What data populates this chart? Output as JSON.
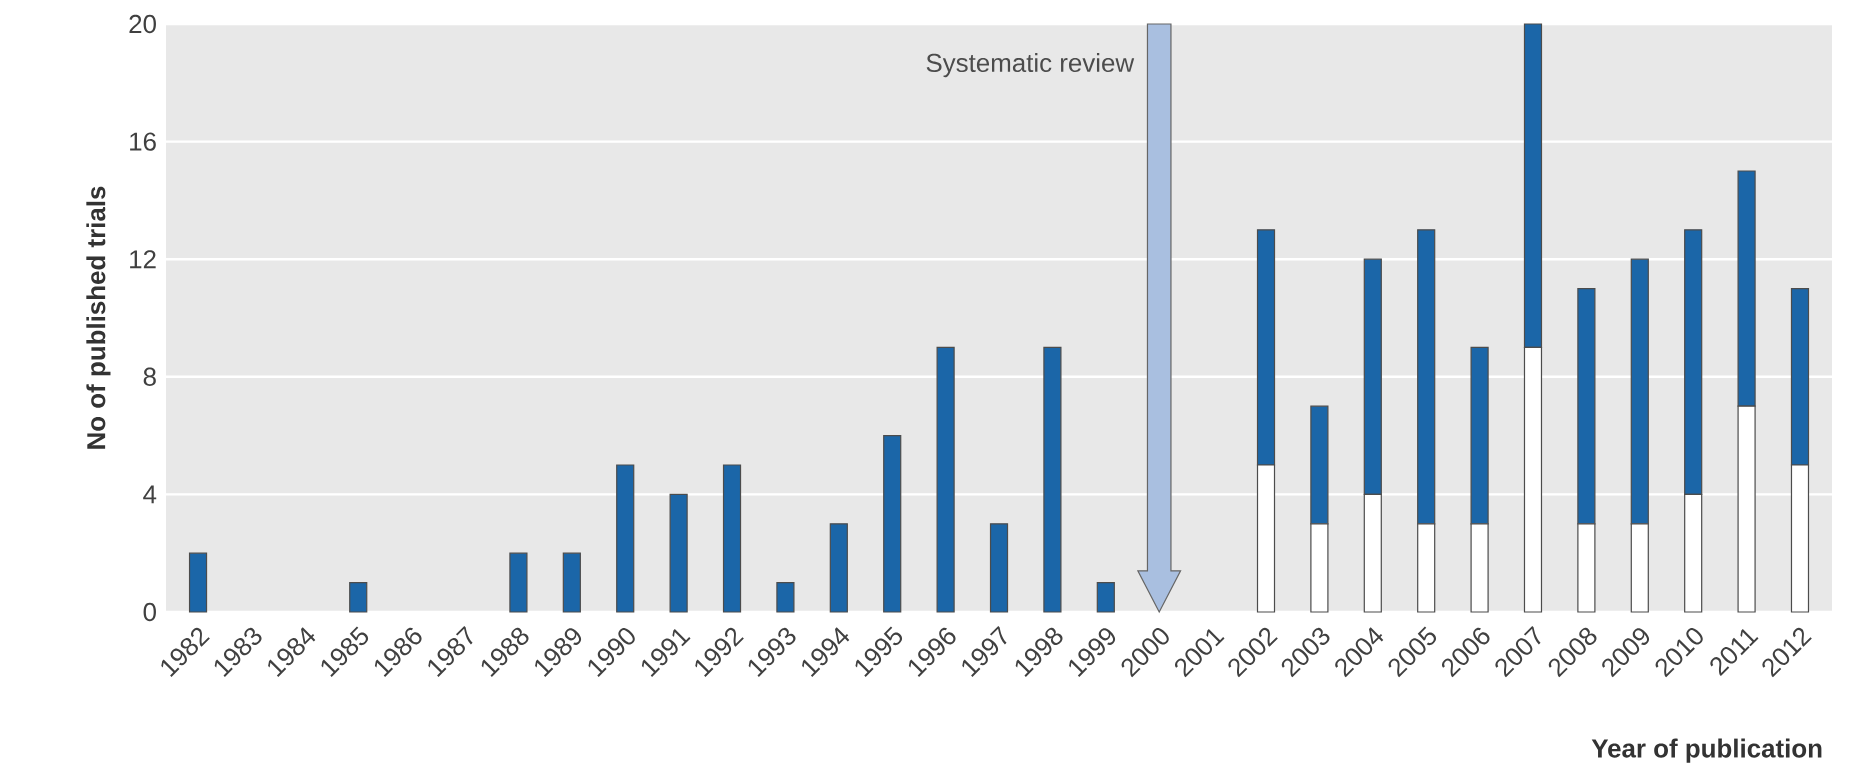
{
  "chart_data": {
    "type": "bar",
    "stacked": true,
    "xlabel": "Year of publication",
    "ylabel": "No of published trials",
    "categories": [
      "1982",
      "1983",
      "1984",
      "1985",
      "1986",
      "1987",
      "1988",
      "1989",
      "1990",
      "1991",
      "1992",
      "1993",
      "1994",
      "1995",
      "1996",
      "1997",
      "1998",
      "1999",
      "2000",
      "2001",
      "2002",
      "2003",
      "2004",
      "2005",
      "2006",
      "2007",
      "2008",
      "2009",
      "2010",
      "2011",
      "2012"
    ],
    "series": [
      {
        "color": "#ffffff",
        "values": [
          0,
          0,
          0,
          0,
          0,
          0,
          0,
          0,
          0,
          0,
          0,
          0,
          0,
          0,
          0,
          0,
          0,
          0,
          0,
          0,
          5,
          3,
          4,
          3,
          3,
          9,
          3,
          3,
          4,
          7,
          5
        ]
      },
      {
        "color": "#1b66a8",
        "values": [
          2,
          0,
          0,
          1,
          0,
          0,
          2,
          2,
          5,
          4,
          5,
          1,
          3,
          6,
          9,
          3,
          9,
          1,
          0,
          0,
          8,
          4,
          8,
          10,
          6,
          11,
          8,
          9,
          9,
          8,
          6
        ]
      }
    ],
    "ylim": [
      0,
      20
    ],
    "yticks": [
      0,
      4,
      8,
      12,
      16,
      20
    ],
    "grid": "y",
    "ref_lines": [
      {
        "axis": "x",
        "value": "2000",
        "label": "Systematic review",
        "color": "#a9bfe0"
      }
    ]
  }
}
